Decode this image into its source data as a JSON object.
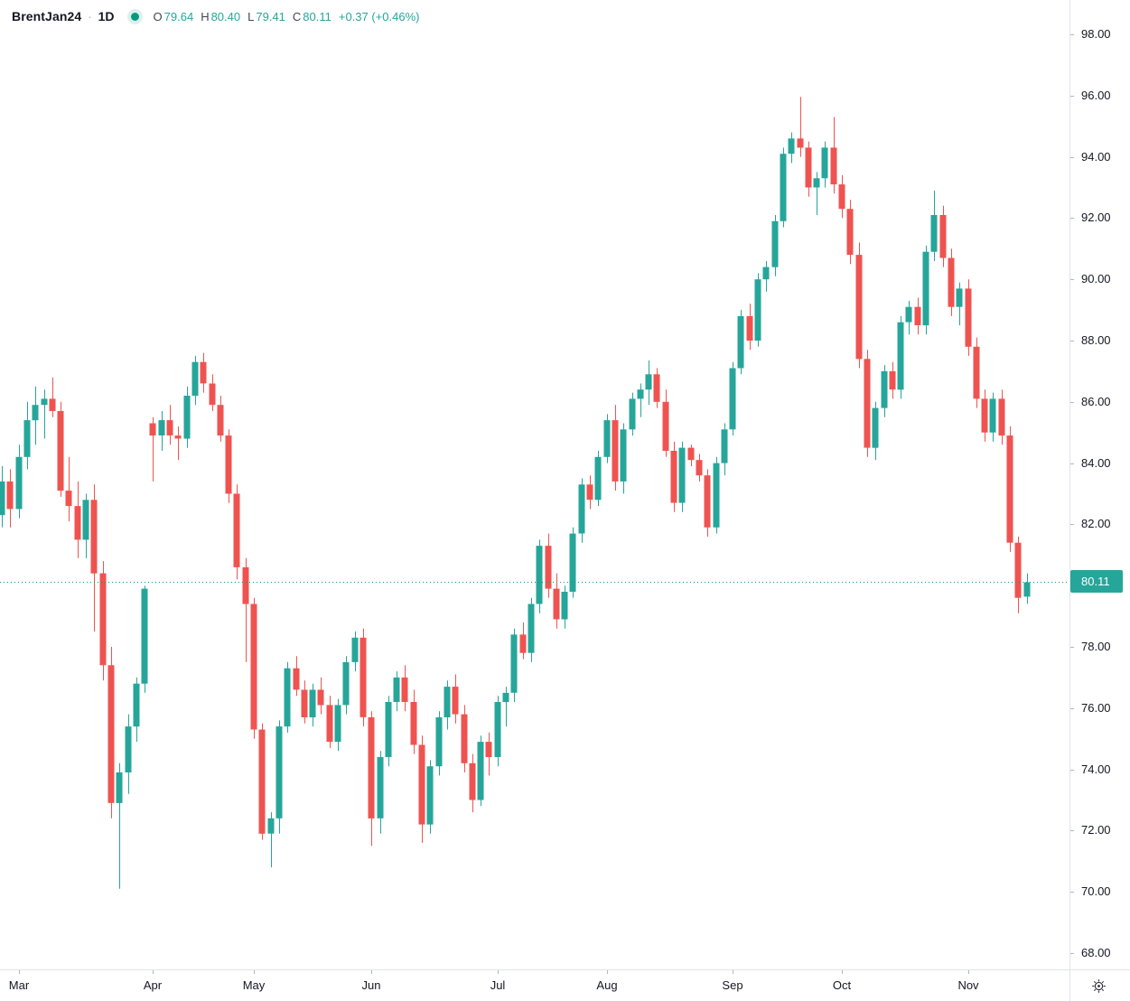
{
  "legend": {
    "symbol": "BrentJan24",
    "separator": "·",
    "interval": "1D",
    "ohlc": {
      "open_label": "O",
      "open": "79.64",
      "high_label": "H",
      "high": "80.40",
      "low_label": "L",
      "low": "79.41",
      "close_label": "C",
      "close": "80.11",
      "change": "+0.37 (+0.46%)"
    }
  },
  "price_axis": {
    "current_price_label": "80.11",
    "tick_values": [
      98,
      96,
      94,
      92,
      90,
      88,
      86,
      84,
      82,
      80,
      78,
      76,
      74,
      72,
      70,
      68
    ]
  },
  "time_axis": {
    "months": [
      {
        "label": "Mar",
        "index": 2
      },
      {
        "label": "Apr",
        "index": 18
      },
      {
        "label": "May",
        "index": 30
      },
      {
        "label": "Jun",
        "index": 44
      },
      {
        "label": "Jul",
        "index": 59
      },
      {
        "label": "Aug",
        "index": 72
      },
      {
        "label": "Sep",
        "index": 87
      },
      {
        "label": "Oct",
        "index": 100
      },
      {
        "label": "Nov",
        "index": 115
      }
    ]
  },
  "colors": {
    "up": "#26a69a",
    "down": "#ef5350",
    "badge_bg": "#26a69a",
    "badge_text": "#ffffff",
    "price_line": "#089981",
    "status_dot": "#089981",
    "text": "#131722",
    "muted_text": "#434651",
    "axis_border": "#e0e3eb",
    "background": "#ffffff"
  },
  "chart_data": {
    "type": "candlestick",
    "title": "BrentJan24",
    "interval": "1D",
    "legend_position": "top-left",
    "grid": false,
    "current_price": 80.11,
    "last_candle": {
      "open": 79.64,
      "high": 80.4,
      "low": 79.41,
      "close": 80.11,
      "change": 0.37,
      "change_pct": 0.46
    },
    "ylim": [
      66.9,
      98.9
    ],
    "y_ticks": [
      98,
      96,
      94,
      92,
      90,
      88,
      86,
      84,
      82,
      80,
      78,
      76,
      74,
      72,
      70,
      68
    ],
    "x_months": [
      "Mar",
      "Apr",
      "May",
      "Jun",
      "Jul",
      "Aug",
      "Sep",
      "Oct",
      "Nov"
    ],
    "month_start_indices": [
      2,
      18,
      30,
      44,
      59,
      72,
      87,
      100,
      115
    ],
    "candles_ohlc": [
      [
        82.3,
        83.9,
        81.9,
        83.4
      ],
      [
        83.4,
        83.8,
        81.9,
        82.5
      ],
      [
        82.5,
        84.6,
        82.2,
        84.2
      ],
      [
        84.2,
        86.0,
        83.8,
        85.4
      ],
      [
        85.4,
        86.5,
        84.6,
        85.9
      ],
      [
        85.9,
        86.4,
        84.8,
        86.1
      ],
      [
        86.1,
        86.8,
        85.5,
        85.7
      ],
      [
        85.7,
        86.0,
        82.9,
        83.1
      ],
      [
        83.1,
        84.2,
        82.1,
        82.6
      ],
      [
        82.6,
        83.4,
        80.9,
        81.5
      ],
      [
        81.5,
        83.0,
        80.9,
        82.8
      ],
      [
        82.8,
        83.3,
        78.5,
        80.4
      ],
      [
        80.4,
        80.8,
        76.9,
        77.4
      ],
      [
        77.4,
        78.0,
        72.4,
        72.9
      ],
      [
        72.9,
        74.2,
        70.1,
        73.9
      ],
      [
        73.9,
        75.8,
        73.2,
        75.4
      ],
      [
        75.4,
        77.0,
        74.9,
        76.8
      ],
      [
        76.8,
        80.0,
        76.5,
        79.9
      ],
      [
        85.3,
        85.5,
        83.4,
        84.9
      ],
      [
        84.9,
        85.7,
        84.4,
        85.4
      ],
      [
        85.4,
        85.9,
        84.6,
        84.9
      ],
      [
        84.9,
        85.2,
        84.1,
        84.8
      ],
      [
        84.8,
        86.5,
        84.5,
        86.2
      ],
      [
        86.2,
        87.5,
        85.9,
        87.3
      ],
      [
        87.3,
        87.6,
        86.3,
        86.6
      ],
      [
        86.6,
        86.9,
        85.7,
        85.9
      ],
      [
        85.9,
        86.2,
        84.7,
        84.9
      ],
      [
        84.9,
        85.1,
        82.7,
        83.0
      ],
      [
        83.0,
        83.3,
        80.2,
        80.6
      ],
      [
        80.6,
        80.9,
        77.5,
        79.4
      ],
      [
        79.4,
        79.6,
        75.0,
        75.3
      ],
      [
        75.3,
        75.5,
        71.7,
        71.9
      ],
      [
        71.9,
        72.6,
        70.8,
        72.4
      ],
      [
        72.4,
        75.6,
        71.9,
        75.4
      ],
      [
        75.4,
        77.5,
        75.2,
        77.3
      ],
      [
        77.3,
        77.7,
        76.4,
        76.6
      ],
      [
        76.6,
        76.9,
        75.5,
        75.7
      ],
      [
        75.7,
        76.8,
        75.4,
        76.6
      ],
      [
        76.6,
        77.0,
        75.8,
        76.1
      ],
      [
        76.1,
        76.4,
        74.7,
        74.9
      ],
      [
        74.9,
        76.3,
        74.6,
        76.1
      ],
      [
        76.1,
        77.7,
        75.8,
        77.5
      ],
      [
        77.5,
        78.5,
        77.2,
        78.3
      ],
      [
        78.3,
        78.6,
        75.4,
        75.7
      ],
      [
        75.7,
        75.9,
        71.5,
        72.4
      ],
      [
        72.4,
        74.6,
        71.9,
        74.4
      ],
      [
        74.4,
        76.4,
        74.1,
        76.2
      ],
      [
        76.2,
        77.2,
        75.9,
        77.0
      ],
      [
        77.0,
        77.4,
        75.9,
        76.2
      ],
      [
        76.2,
        76.6,
        74.5,
        74.8
      ],
      [
        74.8,
        75.1,
        71.6,
        72.2
      ],
      [
        72.2,
        74.3,
        71.9,
        74.1
      ],
      [
        74.1,
        75.9,
        73.8,
        75.7
      ],
      [
        75.7,
        76.9,
        75.3,
        76.7
      ],
      [
        76.7,
        77.1,
        75.5,
        75.8
      ],
      [
        75.8,
        76.1,
        73.9,
        74.2
      ],
      [
        74.2,
        74.5,
        72.6,
        73.0
      ],
      [
        73.0,
        75.1,
        72.8,
        74.9
      ],
      [
        74.9,
        75.2,
        73.8,
        74.4
      ],
      [
        74.4,
        76.4,
        74.1,
        76.2
      ],
      [
        76.2,
        76.7,
        75.4,
        76.5
      ],
      [
        76.5,
        78.6,
        76.2,
        78.4
      ],
      [
        78.4,
        78.8,
        77.6,
        77.8
      ],
      [
        77.8,
        79.6,
        77.5,
        79.4
      ],
      [
        79.4,
        81.5,
        79.1,
        81.3
      ],
      [
        81.3,
        81.7,
        79.6,
        79.9
      ],
      [
        79.9,
        80.4,
        78.6,
        78.9
      ],
      [
        78.9,
        80.0,
        78.6,
        79.8
      ],
      [
        79.8,
        81.9,
        79.6,
        81.7
      ],
      [
        81.7,
        83.5,
        81.4,
        83.3
      ],
      [
        83.3,
        83.6,
        82.5,
        82.8
      ],
      [
        82.8,
        84.4,
        82.6,
        84.2
      ],
      [
        84.2,
        85.6,
        84.0,
        85.4
      ],
      [
        85.4,
        85.9,
        83.1,
        83.4
      ],
      [
        83.4,
        85.3,
        83.0,
        85.1
      ],
      [
        85.1,
        86.3,
        84.9,
        86.1
      ],
      [
        86.1,
        86.6,
        85.5,
        86.4
      ],
      [
        86.4,
        87.35,
        85.9,
        86.9
      ],
      [
        86.9,
        87.1,
        85.8,
        86.0
      ],
      [
        86.0,
        86.4,
        84.2,
        84.4
      ],
      [
        84.4,
        84.7,
        82.4,
        82.7
      ],
      [
        82.7,
        84.7,
        82.4,
        84.5
      ],
      [
        84.5,
        84.6,
        83.9,
        84.1
      ],
      [
        84.1,
        84.3,
        83.4,
        83.6
      ],
      [
        83.6,
        83.8,
        81.6,
        81.9
      ],
      [
        81.9,
        84.2,
        81.7,
        84.0
      ],
      [
        84.0,
        85.3,
        83.6,
        85.1
      ],
      [
        85.1,
        87.3,
        84.9,
        87.1
      ],
      [
        87.1,
        89.0,
        86.9,
        88.8
      ],
      [
        88.8,
        89.2,
        87.7,
        88.0
      ],
      [
        88.0,
        90.2,
        87.8,
        90.0
      ],
      [
        90.0,
        90.6,
        89.6,
        90.4
      ],
      [
        90.4,
        92.1,
        90.1,
        91.9
      ],
      [
        91.9,
        94.3,
        91.7,
        94.1
      ],
      [
        94.1,
        94.8,
        93.8,
        94.6
      ],
      [
        94.6,
        95.96,
        94.0,
        94.3
      ],
      [
        94.3,
        94.5,
        92.7,
        93.0
      ],
      [
        93.0,
        93.5,
        92.1,
        93.3
      ],
      [
        93.3,
        94.5,
        93.0,
        94.3
      ],
      [
        94.3,
        95.3,
        92.8,
        93.1
      ],
      [
        93.1,
        93.4,
        92.0,
        92.3
      ],
      [
        92.3,
        92.6,
        90.5,
        90.8
      ],
      [
        90.8,
        91.2,
        87.1,
        87.4
      ],
      [
        87.4,
        87.7,
        84.2,
        84.5
      ],
      [
        84.5,
        86.0,
        84.1,
        85.8
      ],
      [
        85.8,
        87.2,
        85.5,
        87.0
      ],
      [
        87.0,
        87.3,
        86.1,
        86.4
      ],
      [
        86.4,
        88.8,
        86.1,
        88.6
      ],
      [
        88.6,
        89.3,
        88.2,
        89.1
      ],
      [
        89.1,
        89.4,
        88.2,
        88.5
      ],
      [
        88.5,
        91.1,
        88.2,
        90.9
      ],
      [
        90.9,
        92.9,
        90.6,
        92.1
      ],
      [
        92.1,
        92.4,
        90.4,
        90.7
      ],
      [
        90.7,
        91.0,
        88.8,
        89.1
      ],
      [
        89.1,
        89.9,
        88.5,
        89.7
      ],
      [
        89.7,
        90.0,
        87.5,
        87.8
      ],
      [
        87.8,
        88.1,
        85.8,
        86.1
      ],
      [
        86.1,
        86.4,
        84.7,
        85.0
      ],
      [
        85.0,
        86.3,
        84.7,
        86.1
      ],
      [
        86.1,
        86.4,
        84.6,
        84.9
      ],
      [
        84.9,
        85.2,
        81.1,
        81.4
      ],
      [
        81.4,
        81.6,
        79.1,
        79.6
      ],
      [
        79.64,
        80.4,
        79.41,
        80.11
      ]
    ]
  }
}
